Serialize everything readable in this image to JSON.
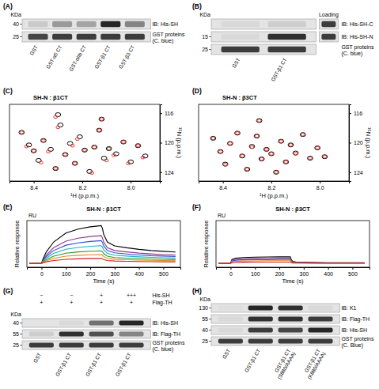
{
  "chart_data": [
    {
      "type": "blot",
      "panel": "(A)",
      "mw_unit": "KDa",
      "lanes": [
        "GST",
        "GST-α5 CT",
        "GST-αIIb CT",
        "GST-β1 CT",
        "GST-β3 CT"
      ],
      "rows": [
        {
          "label": "IB: His-SH",
          "mw": 40,
          "bands": [
            0.12,
            0.35,
            0.3,
            0.9,
            0.45
          ]
        },
        {
          "label": "GST proteins",
          "sublabel": "(C. blue)",
          "mw": 25,
          "bands": [
            0.75,
            0.8,
            0.8,
            0.8,
            0.8
          ]
        }
      ]
    },
    {
      "type": "blot",
      "panel": "(B)",
      "mw_unit": "KDa",
      "loading_title": "Loading",
      "lanes": [
        "GST",
        "GST-β1 CT"
      ],
      "rows": [
        {
          "label": "IB: His-SH-C",
          "mw": null,
          "bands": [
            0.05,
            0.1
          ],
          "loading": 0.8
        },
        {
          "label": "IB: His-SH-N",
          "mw": 15,
          "bands": [
            0.05,
            0.85
          ],
          "loading": 0.8
        },
        {
          "label": "GST proteins",
          "sublabel": "(C. blue)",
          "mw": 25,
          "bands": [
            0.8,
            0.8
          ],
          "loading": null
        }
      ]
    },
    {
      "type": "scatter",
      "panel": "(C)",
      "title": "SH-N : β1CT",
      "marker": "contour",
      "x_label": "¹H (p.p.m.)",
      "y_label": "¹⁵N (p.p.m.)",
      "xlim": [
        8.5,
        7.88
      ],
      "ylim": [
        114.8,
        125.2
      ],
      "xticks": [
        8.4,
        8.2,
        {
          "value": 8,
          "label": "8.0"
        }
      ],
      "yticks": [
        116,
        120,
        124
      ],
      "series": [
        {
          "color": "#000000",
          "x": [
            8.45,
            8.42,
            8.4,
            8.38,
            8.36,
            8.33,
            8.31,
            8.29,
            8.27,
            8.25,
            8.23,
            8.21,
            8.19,
            8.17,
            8.15,
            8.13,
            8.11,
            8.09,
            8.06,
            8.03,
            8.0,
            7.97,
            7.94,
            8.3,
            8.12
          ],
          "values": [
            118.6,
            120.3,
            121.1,
            122.4,
            119.7,
            120.9,
            123.5,
            117.6,
            121.6,
            120.1,
            122.8,
            119.2,
            121.0,
            123.9,
            120.6,
            118.3,
            122.1,
            120.8,
            121.5,
            119.9,
            122.6,
            120.4,
            121.8,
            116.2,
            116.8
          ]
        },
        {
          "color": "#e8332a",
          "x": [
            8.45,
            8.43,
            8.4,
            8.37,
            8.36,
            8.34,
            8.31,
            8.3,
            8.27,
            8.24,
            8.23,
            8.22,
            8.19,
            8.16,
            8.15,
            8.13,
            8.1,
            8.09,
            8.07,
            8.03,
            8.01,
            7.97,
            7.95,
            8.31,
            8.12
          ],
          "values": [
            118.6,
            120.5,
            121.1,
            122.7,
            119.7,
            121.2,
            123.5,
            117.9,
            121.6,
            120.4,
            122.8,
            119.5,
            121.0,
            124.1,
            120.6,
            118.3,
            122.4,
            120.8,
            121.7,
            119.9,
            122.8,
            120.4,
            122.0,
            116.5,
            116.8
          ]
        }
      ]
    },
    {
      "type": "scatter",
      "panel": "(D)",
      "title": "SH-N : β3CT",
      "marker": "contour",
      "x_label": "¹H (p.p.m.)",
      "y_label": "¹⁵N (p.p.m.)",
      "xlim": [
        8.5,
        7.88
      ],
      "ylim": [
        114.8,
        125.2
      ],
      "xticks": [
        8.4,
        8.2,
        {
          "value": 8,
          "label": "8.0"
        }
      ],
      "yticks": [
        116,
        120,
        124
      ],
      "series": [
        {
          "color": "#000000",
          "x": [
            8.44,
            8.41,
            8.39,
            8.37,
            8.34,
            8.32,
            8.3,
            8.28,
            8.26,
            8.24,
            8.22,
            8.2,
            8.18,
            8.16,
            8.14,
            8.12,
            8.1,
            8.07,
            8.04,
            8.01,
            7.98,
            8.25
          ],
          "values": [
            119.4,
            121.2,
            122.9,
            120.1,
            118.7,
            121.8,
            123.6,
            120.5,
            119.1,
            122.2,
            120.9,
            121.5,
            124.0,
            119.8,
            122.6,
            120.3,
            121.4,
            118.9,
            122.1,
            120.7,
            121.9,
            117.0
          ]
        },
        {
          "color": "#e8332a",
          "x": [
            8.44,
            8.41,
            8.39,
            8.37,
            8.34,
            8.32,
            8.3,
            8.28,
            8.26,
            8.24,
            8.22,
            8.2,
            8.18,
            8.16,
            8.14,
            8.12,
            8.1,
            8.07,
            8.04,
            8.01,
            7.98,
            8.25
          ],
          "values": [
            119.4,
            121.2,
            123.0,
            120.1,
            118.7,
            121.8,
            123.6,
            120.6,
            119.1,
            122.2,
            120.9,
            121.5,
            124.0,
            119.8,
            122.6,
            120.3,
            121.5,
            118.9,
            122.1,
            120.7,
            121.9,
            117.0
          ]
        }
      ]
    },
    {
      "type": "line",
      "panel": "(E)",
      "title": "SH-N : β1CT",
      "y_unit": "RU",
      "y_label": "Relative response",
      "x_label": "Time (s)",
      "tick_labels": "x",
      "xlim": [
        -60,
        570
      ],
      "xticks": [
        0,
        100,
        200,
        300,
        400,
        500
      ],
      "ylim": [
        -3,
        33
      ],
      "x": [
        -50,
        0,
        5,
        20,
        50,
        100,
        150,
        200,
        245,
        250,
        255,
        270,
        300,
        350,
        400,
        450,
        500,
        550
      ],
      "series": [
        {
          "color": "#000000",
          "values": [
            0,
            0,
            3,
            9,
            16.5,
            23.4,
            26.4,
            28.2,
            29.1,
            27,
            22.5,
            16.5,
            13.5,
            12,
            10.8,
            9.9,
            9.3,
            8.7
          ]
        },
        {
          "color": "#8b3a8b",
          "values": [
            0,
            0,
            2.2,
            6.6,
            12.1,
            17.2,
            19.4,
            20.7,
            21.3,
            19.8,
            16.5,
            12.1,
            9.9,
            8.8,
            7.9,
            7.3,
            6.8,
            6.4
          ]
        },
        {
          "color": "#3050d0",
          "values": [
            0,
            0,
            1.8,
            5.4,
            9.9,
            14,
            15.8,
            16.9,
            17.5,
            16.2,
            13.5,
            9.9,
            8.1,
            7.2,
            6.5,
            5.9,
            5.6,
            5.2
          ]
        },
        {
          "color": "#20b0c0",
          "values": [
            0,
            0,
            1.4,
            4.2,
            7.7,
            10.9,
            12.3,
            13.2,
            13.6,
            12.6,
            10.5,
            7.7,
            6.3,
            5.6,
            5,
            4.6,
            4.3,
            4.1
          ]
        },
        {
          "color": "#2a9a2a",
          "values": [
            0,
            0,
            1,
            3,
            5.5,
            7.8,
            8.8,
            9.4,
            9.7,
            9,
            7.5,
            5.5,
            4.5,
            4,
            3.6,
            3.3,
            3.1,
            2.9
          ]
        },
        {
          "color": "#e08a20",
          "values": [
            0,
            0,
            0.7,
            2.1,
            3.9,
            5.5,
            6.2,
            6.6,
            6.8,
            6.3,
            5.3,
            3.9,
            3.2,
            2.8,
            2.5,
            2.3,
            2.2,
            2
          ]
        },
        {
          "color": "#d02020",
          "values": [
            0,
            0,
            0.4,
            1.2,
            2.2,
            3.1,
            3.5,
            3.8,
            3.9,
            3.6,
            3,
            2.2,
            1.8,
            1.6,
            1.4,
            1.3,
            1.2,
            1.2
          ]
        }
      ]
    },
    {
      "type": "line",
      "panel": "(F)",
      "title": "SH-N : β3CT",
      "y_unit": "RU",
      "y_label": "Relative response",
      "x_label": "Time (s)",
      "tick_labels": "x",
      "xlim": [
        -60,
        570
      ],
      "xticks": [
        0,
        100,
        200,
        300,
        400,
        500
      ],
      "ylim": [
        -3,
        33
      ],
      "x": [
        -50,
        0,
        5,
        20,
        50,
        100,
        150,
        200,
        245,
        250,
        255,
        270,
        300,
        350,
        400,
        450,
        500,
        550
      ],
      "series": [
        {
          "color": "#000000",
          "values": [
            0,
            0,
            3,
            4,
            4.5,
            4.8,
            4.9,
            5,
            5,
            2.5,
            1.5,
            1,
            0.8,
            0.6,
            0.5,
            0.5,
            0.5,
            0.5
          ]
        },
        {
          "color": "#8b3a8b",
          "values": [
            0,
            0,
            2.4,
            3.2,
            3.6,
            3.8,
            3.9,
            4,
            4,
            2,
            1.2,
            0.8,
            0.6,
            0.5,
            0.4,
            0.4,
            0.4,
            0.4
          ]
        },
        {
          "color": "#3050d0",
          "values": [
            0,
            0,
            1.8,
            2.4,
            2.7,
            2.9,
            2.9,
            3,
            3,
            1.5,
            0.9,
            0.6,
            0.5,
            0.4,
            0.3,
            0.3,
            0.3,
            0.3
          ]
        },
        {
          "color": "#e08a20",
          "values": [
            0,
            0,
            1.2,
            1.6,
            1.8,
            1.9,
            2,
            2,
            2,
            1,
            0.6,
            0.4,
            0.3,
            0.2,
            0.2,
            0.2,
            0.2,
            0.2
          ]
        },
        {
          "color": "#d02020",
          "values": [
            0,
            0,
            0.6,
            0.8,
            0.9,
            1,
            1,
            1,
            1,
            0.5,
            0.3,
            0.2,
            0.2,
            0.1,
            0.1,
            0.1,
            0.1,
            0.1
          ]
        }
      ]
    },
    {
      "type": "blot",
      "panel": "(G)",
      "mw_unit": "KDa",
      "conditions": [
        {
          "label": "His-SH",
          "marks": [
            "−",
            "−",
            "+",
            "+++"
          ]
        },
        {
          "label": "Flag-TH",
          "marks": [
            "+",
            "+",
            "+",
            "+"
          ]
        }
      ],
      "lanes": [
        "GST",
        "GST-β1 CT",
        "GST-β1 CT",
        "GST-β1 CT"
      ],
      "rows": [
        {
          "label": "IB: His-SH",
          "mw": 40,
          "bands": [
            0,
            0.05,
            0.55,
            0.9
          ]
        },
        {
          "label": "IB: Flag-TH",
          "mw": 55,
          "bands": [
            0.1,
            0.85,
            0.7,
            0.45
          ]
        },
        {
          "label": "GST proteins",
          "sublabel": "(C. blue)",
          "mw": 25,
          "bands": [
            0.8,
            0.8,
            0.8,
            0.8
          ]
        }
      ]
    },
    {
      "type": "blot",
      "panel": "(H)",
      "mw_unit": "KDa",
      "lanes": [
        "GST",
        "GST-β1 CT",
        "GST-β1 CT (S880/AAAA)",
        "GST-β1 CT (K880/AAAA)"
      ],
      "rows": [
        {
          "label": "IB: K1",
          "mw": 130,
          "bands": [
            0.02,
            0.9,
            0.85,
            0.05
          ]
        },
        {
          "label": "IB: Flag-TH",
          "mw": 55,
          "bands": [
            0.05,
            0.85,
            0.85,
            0.8
          ]
        },
        {
          "label": "IB: His-SH",
          "mw": 40,
          "bands": [
            0.05,
            0.8,
            0.75,
            0.9
          ]
        },
        {
          "label": "GST proteins",
          "sublabel": "(C. Blue)",
          "mw": 25,
          "bands": [
            0.8,
            0.8,
            0.8,
            0.8
          ]
        }
      ]
    }
  ]
}
